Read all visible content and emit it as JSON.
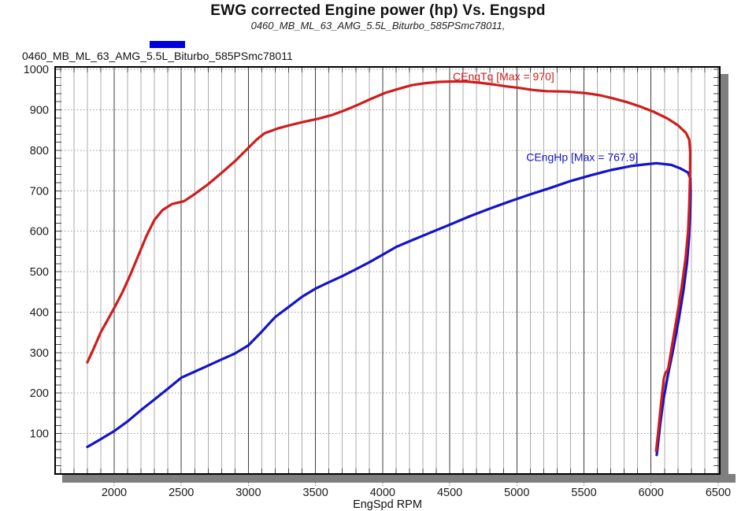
{
  "page": {
    "background": "#ffffff"
  },
  "header": {
    "title": "EWG corrected Engine power (hp) Vs. Engspd",
    "subtitle": "0460_MB_ML_63_AMG_5.5L_Biturbo_585PSmc78011,"
  },
  "legend": {
    "swatch_color": "#0000dd",
    "label": "0460_MB_ML_63_AMG_5.5L_Biturbo_585PSmc78011",
    "position": "top-left"
  },
  "chart_data": {
    "type": "line",
    "title": "EWG corrected Engine power (hp) Vs. Engspd",
    "subtitle": "0460_MB_ML_63_AMG_5.5L_Biturbo_585PSmc78011,",
    "xlabel": "EngSpd RPM",
    "ylabel": "",
    "xlim": [
      1560,
      6512
    ],
    "ylim": [
      0,
      1006
    ],
    "x_ticks": [
      2000,
      2500,
      3000,
      3500,
      4000,
      4500,
      5000,
      5500,
      6000,
      6500
    ],
    "y_ticks": [
      100,
      200,
      300,
      400,
      500,
      600,
      700,
      800,
      900,
      1000
    ],
    "x_minor_step": 100,
    "y_minor_tick_step": 20,
    "grid": {
      "vertical": "solid every 100 rpm, darker every 500",
      "horizontal": "dotted every 100 units"
    },
    "frame_color": "#000000",
    "minor_grid_color": "#ababab",
    "major_grid_color": "#3c3c3c",
    "horizontal_grid_color": "#9a9a9a",
    "shadow_color": "#7f7f7f",
    "tick_label_color": "#1a1a1a",
    "series": [
      {
        "name": "CEngTq",
        "color": "#cf1d1d",
        "max": 970,
        "annotation": {
          "text": "CEngTq [Max = 970]",
          "x": 4523,
          "y": 973
        },
        "points": [
          [
            1800,
            276
          ],
          [
            1850,
            312
          ],
          [
            1900,
            350
          ],
          [
            1950,
            380
          ],
          [
            2000,
            410
          ],
          [
            2060,
            448
          ],
          [
            2120,
            492
          ],
          [
            2180,
            540
          ],
          [
            2240,
            588
          ],
          [
            2300,
            628
          ],
          [
            2360,
            652
          ],
          [
            2430,
            667
          ],
          [
            2520,
            674
          ],
          [
            2600,
            692
          ],
          [
            2700,
            716
          ],
          [
            2800,
            744
          ],
          [
            2900,
            773
          ],
          [
            3000,
            806
          ],
          [
            3060,
            826
          ],
          [
            3120,
            842
          ],
          [
            3220,
            854
          ],
          [
            3320,
            863
          ],
          [
            3420,
            871
          ],
          [
            3520,
            878
          ],
          [
            3620,
            887
          ],
          [
            3720,
            899
          ],
          [
            3820,
            913
          ],
          [
            3920,
            928
          ],
          [
            4020,
            942
          ],
          [
            4120,
            952
          ],
          [
            4220,
            961
          ],
          [
            4320,
            966
          ],
          [
            4420,
            969
          ],
          [
            4520,
            970
          ],
          [
            4620,
            970
          ],
          [
            4720,
            967
          ],
          [
            4820,
            963
          ],
          [
            4920,
            958
          ],
          [
            5020,
            954
          ],
          [
            5120,
            949
          ],
          [
            5220,
            946
          ],
          [
            5370,
            945
          ],
          [
            5520,
            941
          ],
          [
            5620,
            936
          ],
          [
            5720,
            928
          ],
          [
            5820,
            919
          ],
          [
            5920,
            908
          ],
          [
            6020,
            895
          ],
          [
            6120,
            879
          ],
          [
            6200,
            862
          ],
          [
            6260,
            843
          ],
          [
            6285,
            826
          ],
          [
            6292,
            795
          ],
          [
            6290,
            735
          ],
          [
            6285,
            668
          ],
          [
            6276,
            600
          ],
          [
            6257,
            532
          ],
          [
            6228,
            462
          ],
          [
            6192,
            388
          ],
          [
            6150,
            305
          ],
          [
            6128,
            262
          ],
          [
            6120,
            255
          ],
          [
            6108,
            250
          ],
          [
            6095,
            235
          ],
          [
            6075,
            175
          ],
          [
            6055,
            110
          ],
          [
            6038,
            57
          ]
        ]
      },
      {
        "name": "CEngHp",
        "color": "#1414c8",
        "max": 767.9,
        "annotation": {
          "text": "CEngHp [Max = 767.9]",
          "x": 5070,
          "y": 773
        },
        "points": [
          [
            1800,
            67
          ],
          [
            1900,
            86
          ],
          [
            2000,
            106
          ],
          [
            2100,
            130
          ],
          [
            2200,
            158
          ],
          [
            2300,
            184
          ],
          [
            2400,
            211
          ],
          [
            2500,
            238
          ],
          [
            2600,
            253
          ],
          [
            2700,
            268
          ],
          [
            2800,
            283
          ],
          [
            2900,
            298
          ],
          [
            3000,
            318
          ],
          [
            3100,
            352
          ],
          [
            3200,
            388
          ],
          [
            3300,
            413
          ],
          [
            3400,
            438
          ],
          [
            3500,
            458
          ],
          [
            3600,
            474
          ],
          [
            3700,
            489
          ],
          [
            3800,
            506
          ],
          [
            3900,
            523
          ],
          [
            4000,
            542
          ],
          [
            4100,
            561
          ],
          [
            4220,
            578
          ],
          [
            4360,
            597
          ],
          [
            4500,
            616
          ],
          [
            4650,
            637
          ],
          [
            4800,
            656
          ],
          [
            4950,
            674
          ],
          [
            5100,
            691
          ],
          [
            5250,
            707
          ],
          [
            5400,
            724
          ],
          [
            5550,
            738
          ],
          [
            5700,
            751
          ],
          [
            5850,
            761
          ],
          [
            5950,
            765
          ],
          [
            6040,
            768
          ],
          [
            6150,
            764
          ],
          [
            6220,
            755
          ],
          [
            6275,
            745
          ],
          [
            6293,
            730
          ],
          [
            6295,
            690
          ],
          [
            6290,
            640
          ],
          [
            6283,
            585
          ],
          [
            6268,
            522
          ],
          [
            6242,
            455
          ],
          [
            6206,
            380
          ],
          [
            6162,
            302
          ],
          [
            6122,
            238
          ],
          [
            6092,
            182
          ],
          [
            6068,
            122
          ],
          [
            6048,
            62
          ],
          [
            6042,
            47
          ]
        ]
      }
    ]
  }
}
